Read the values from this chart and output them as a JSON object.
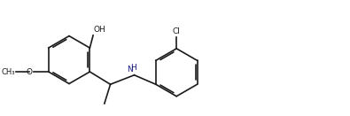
{
  "background_color": "#ffffff",
  "bond_color": "#1a1a1a",
  "text_color": "#1a1a1a",
  "nh_color": "#1a1a8a",
  "figsize": [
    3.95,
    1.31
  ],
  "dpi": 100,
  "lw": 1.2,
  "r_ring": 0.72,
  "xlim": [
    0,
    10.3
  ],
  "ylim": [
    0,
    3.41
  ]
}
